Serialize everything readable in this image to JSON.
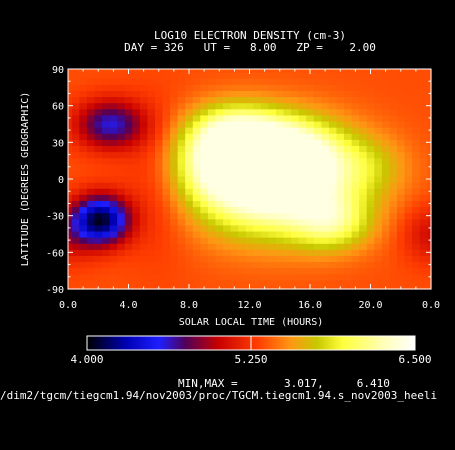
{
  "chart_data": {
    "type": "heatmap",
    "title": "LOG10 ELECTRON DENSITY (cm-3)",
    "subtitle": "DAY = 326   UT =   8.00   ZP =    2.00",
    "xlabel": "SOLAR LOCAL TIME (HOURS)",
    "ylabel": "LATITUDE (DEGREES GEOGRAPHIC)",
    "xlim": [
      0,
      24
    ],
    "ylim": [
      -90,
      90
    ],
    "x_ticks": [
      "0.0",
      "4.0",
      "8.0",
      "12.0",
      "16.0",
      "20.0",
      "0.0"
    ],
    "y_ticks": [
      "90",
      "60",
      "30",
      "0",
      "-30",
      "-60",
      "-90"
    ],
    "colorbar": {
      "min_label": "4.000",
      "mid_label": "5.250",
      "max_label": "6.500",
      "min": 4.0,
      "max": 6.5,
      "stops": [
        {
          "v": 4.0,
          "c": "#000000"
        },
        {
          "v": 4.3,
          "c": "#0000b4"
        },
        {
          "v": 4.55,
          "c": "#1e1eff"
        },
        {
          "v": 4.75,
          "c": "#50005a"
        },
        {
          "v": 5.0,
          "c": "#c80000"
        },
        {
          "v": 5.3,
          "c": "#ff3c00"
        },
        {
          "v": 5.55,
          "c": "#ff9614"
        },
        {
          "v": 5.75,
          "c": "#c8c800"
        },
        {
          "v": 5.95,
          "c": "#ffff3c"
        },
        {
          "v": 6.25,
          "c": "#ffffb4"
        },
        {
          "v": 6.5,
          "c": "#ffffff"
        }
      ]
    },
    "grid_x_count": 49,
    "grid_y_count": 37,
    "features": [
      {
        "x": 13.5,
        "y": -2,
        "sx": 3.6,
        "sy": 30,
        "a": 1.35
      },
      {
        "x": 14.0,
        "y": 22,
        "sx": 2.8,
        "sy": 20,
        "a": 0.8
      },
      {
        "x": 11.0,
        "y": 40,
        "sx": 2.0,
        "sy": 16,
        "a": 0.55
      },
      {
        "x": 17.5,
        "y": -35,
        "sx": 1.8,
        "sy": 16,
        "a": 0.55
      },
      {
        "x": 9.5,
        "y": 15,
        "sx": 2.0,
        "sy": 22,
        "a": 0.5
      },
      {
        "x": 20.0,
        "y": 10,
        "sx": 1.8,
        "sy": 18,
        "a": 0.25
      },
      {
        "x": 2.2,
        "y": -33,
        "sx": 1.3,
        "sy": 14,
        "a": -1.25
      },
      {
        "x": 2.8,
        "y": 45,
        "sx": 1.6,
        "sy": 14,
        "a": -0.75
      },
      {
        "x": 0.0,
        "y": -45,
        "sx": 1.3,
        "sy": 16,
        "a": -0.3
      },
      {
        "x": 24.0,
        "y": -45,
        "sx": 1.3,
        "sy": 16,
        "a": -0.3
      },
      {
        "x": 6.0,
        "y": 0,
        "sx": 1.6,
        "sy": 40,
        "a": -0.2
      }
    ],
    "baseline": 5.35,
    "min": 3.017,
    "max": 6.41,
    "minmax_label": "MIN,MAX =       3.017,     6.410"
  },
  "file_path": "/dim2/tgcm/tiegcm1.94/nov2003/proc/TGCM.tiegcm1.94.s_nov2003_heeli"
}
